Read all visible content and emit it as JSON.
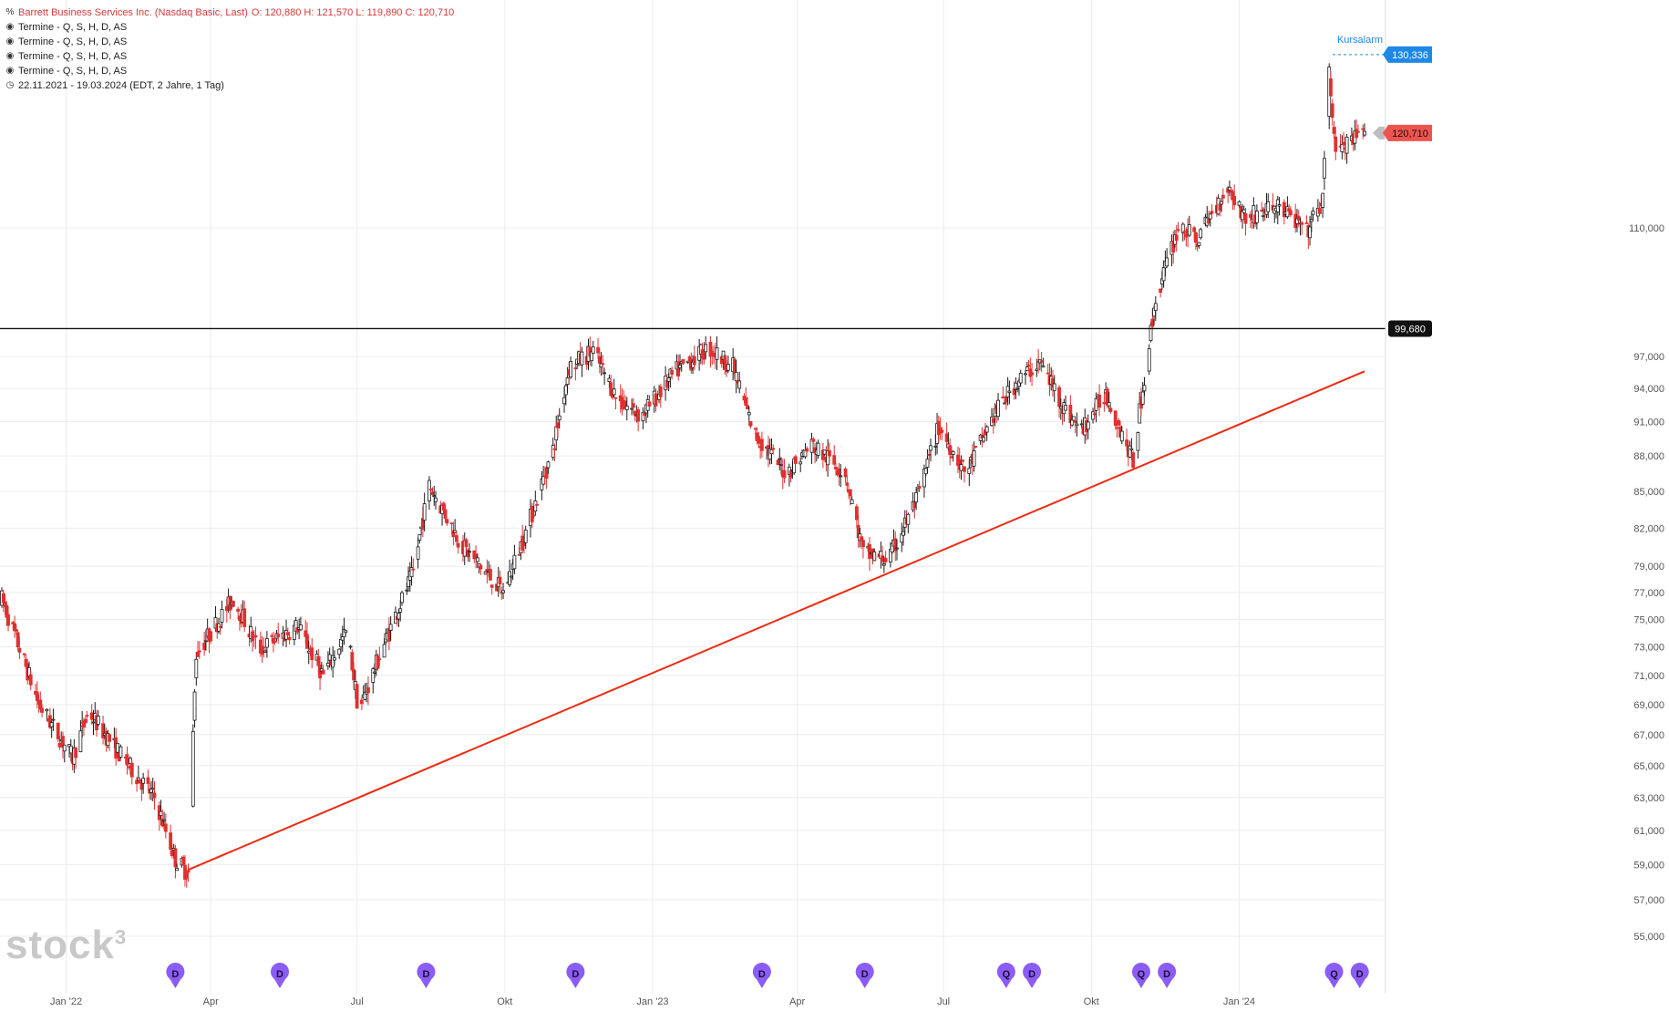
{
  "header": {
    "title": "Barrett Business Services Inc. (Nasdaq Basic, Last)",
    "ohlc": "O: 120,880  H: 121,570  L: 119,890  C: 120,710",
    "events": [
      "Termine - Q, S, H, D, AS",
      "Termine - Q, S, H, D, AS",
      "Termine - Q, S, H, D, AS",
      "Termine - Q, S, H, D, AS"
    ],
    "range": "22.11.2021 - 19.03.2024   (EDT, 2 Jahre, 1 Tag)"
  },
  "watermark": {
    "text": "stock",
    "sup": "3"
  },
  "colors": {
    "up": "#1a1a1a",
    "down": "#e03030",
    "trendline": "#ee2a10",
    "grid": "#ececec",
    "alarm": "#1e88e5",
    "last_price": "#ef5350",
    "marker": "#8b5cf6"
  },
  "chart_data": {
    "type": "candlestick",
    "y_scale": "log",
    "ylim": [
      54000,
      135000
    ],
    "y_ticks": [
      "110,000",
      "97,000",
      "94,000",
      "91,000",
      "88,000",
      "85,000",
      "82,000",
      "79,000",
      "77,000",
      "75,000",
      "73,000",
      "71,000",
      "69,000",
      "67,000",
      "65,000",
      "63,000",
      "61,000",
      "59,000",
      "57,000",
      "55,000"
    ],
    "x_range": [
      "2021-11-22",
      "2024-03-19"
    ],
    "x_ticks": [
      {
        "label": "Jan '22",
        "date": "2022-01-01"
      },
      {
        "label": "Apr",
        "date": "2022-04-01"
      },
      {
        "label": "Jul",
        "date": "2022-07-01"
      },
      {
        "label": "Okt",
        "date": "2022-10-01"
      },
      {
        "label": "Jan '23",
        "date": "2023-01-01"
      },
      {
        "label": "Apr",
        "date": "2023-04-01"
      },
      {
        "label": "Jul",
        "date": "2023-07-01"
      },
      {
        "label": "Okt",
        "date": "2023-10-01"
      },
      {
        "label": "Jan '24",
        "date": "2024-01-01"
      }
    ],
    "last_ohlc": {
      "open": 120880,
      "high": 121570,
      "low": 119890,
      "close": 120710
    },
    "price_path": [
      {
        "date": "2021-11-22",
        "price": 76500
      },
      {
        "date": "2021-12-15",
        "price": 69000
      },
      {
        "date": "2022-01-05",
        "price": 65500
      },
      {
        "date": "2022-01-15",
        "price": 68500
      },
      {
        "date": "2022-02-05",
        "price": 65500
      },
      {
        "date": "2022-02-25",
        "price": 63000
      },
      {
        "date": "2022-03-10",
        "price": 59300
      },
      {
        "date": "2022-03-18",
        "price": 58500
      },
      {
        "date": "2022-03-23",
        "price": 72500
      },
      {
        "date": "2022-04-15",
        "price": 76500
      },
      {
        "date": "2022-05-01",
        "price": 72800
      },
      {
        "date": "2022-05-25",
        "price": 74500
      },
      {
        "date": "2022-06-10",
        "price": 71000
      },
      {
        "date": "2022-06-25",
        "price": 74200
      },
      {
        "date": "2022-07-02",
        "price": 68500
      },
      {
        "date": "2022-07-20",
        "price": 73800
      },
      {
        "date": "2022-08-05",
        "price": 78500
      },
      {
        "date": "2022-08-15",
        "price": 85500
      },
      {
        "date": "2022-09-05",
        "price": 80500
      },
      {
        "date": "2022-09-30",
        "price": 77000
      },
      {
        "date": "2022-10-15",
        "price": 82000
      },
      {
        "date": "2022-10-31",
        "price": 88500
      },
      {
        "date": "2022-11-10",
        "price": 96000
      },
      {
        "date": "2022-11-25",
        "price": 97500
      },
      {
        "date": "2022-12-10",
        "price": 93000
      },
      {
        "date": "2022-12-25",
        "price": 91500
      },
      {
        "date": "2023-01-15",
        "price": 95500
      },
      {
        "date": "2023-02-05",
        "price": 97800
      },
      {
        "date": "2023-02-20",
        "price": 96000
      },
      {
        "date": "2023-03-05",
        "price": 90000
      },
      {
        "date": "2023-03-25",
        "price": 86500
      },
      {
        "date": "2023-04-10",
        "price": 89000
      },
      {
        "date": "2023-05-01",
        "price": 86500
      },
      {
        "date": "2023-05-12",
        "price": 80000
      },
      {
        "date": "2023-05-28",
        "price": 79500
      },
      {
        "date": "2023-06-15",
        "price": 84500
      },
      {
        "date": "2023-06-28",
        "price": 90500
      },
      {
        "date": "2023-07-15",
        "price": 86500
      },
      {
        "date": "2023-08-01",
        "price": 91500
      },
      {
        "date": "2023-08-15",
        "price": 94500
      },
      {
        "date": "2023-08-30",
        "price": 96500
      },
      {
        "date": "2023-09-15",
        "price": 92000
      },
      {
        "date": "2023-09-25",
        "price": 90200
      },
      {
        "date": "2023-10-10",
        "price": 93600
      },
      {
        "date": "2023-10-27",
        "price": 87500
      },
      {
        "date": "2023-11-02",
        "price": 94000
      },
      {
        "date": "2023-11-10",
        "price": 102500
      },
      {
        "date": "2023-11-25",
        "price": 110500
      },
      {
        "date": "2023-12-05",
        "price": 108500
      },
      {
        "date": "2023-12-25",
        "price": 114500
      },
      {
        "date": "2024-01-05",
        "price": 111000
      },
      {
        "date": "2024-01-25",
        "price": 112500
      },
      {
        "date": "2024-02-12",
        "price": 109500
      },
      {
        "date": "2024-02-22",
        "price": 113000
      },
      {
        "date": "2024-02-26",
        "price": 128000
      },
      {
        "date": "2024-03-01",
        "price": 118500
      },
      {
        "date": "2024-03-10",
        "price": 119500
      },
      {
        "date": "2024-03-19",
        "price": 120710
      }
    ],
    "horizontal_line": {
      "value": 99680,
      "label": "99,680"
    },
    "trendline": {
      "start": {
        "date": "2022-03-18",
        "price": 58700
      },
      "end": {
        "date": "2024-03-19",
        "price": 95600
      }
    },
    "price_alarm": {
      "label": "Kursalarm",
      "value": 130336,
      "value_label": "130,336"
    },
    "last_price": {
      "value": 120710,
      "value_label": "120,710"
    },
    "event_markers": [
      {
        "letter": "D",
        "date": "2022-03-10"
      },
      {
        "letter": "D",
        "date": "2022-05-14"
      },
      {
        "letter": "D",
        "date": "2022-08-13"
      },
      {
        "letter": "D",
        "date": "2022-11-14"
      },
      {
        "letter": "D",
        "date": "2023-03-10"
      },
      {
        "letter": "D",
        "date": "2023-05-13"
      },
      {
        "letter": "Q",
        "date": "2023-08-09"
      },
      {
        "letter": "D",
        "date": "2023-08-25"
      },
      {
        "letter": "Q",
        "date": "2023-11-01"
      },
      {
        "letter": "D",
        "date": "2023-11-17"
      },
      {
        "letter": "Q",
        "date": "2024-02-29"
      },
      {
        "letter": "D",
        "date": "2024-03-16"
      }
    ]
  }
}
